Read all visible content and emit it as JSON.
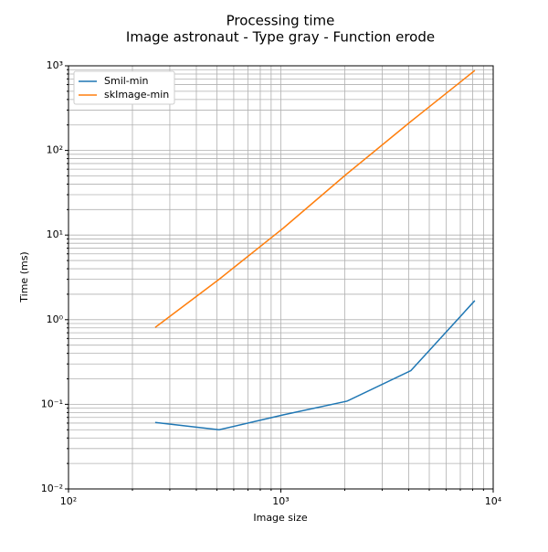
{
  "chart_data": {
    "type": "line",
    "title": "Processing time",
    "subtitle": "Image astronaut - Type gray - Function erode",
    "x_label": "Image size",
    "y_label": "Time (ms)",
    "x": [
      256,
      512,
      1024,
      2048,
      4096,
      8192
    ],
    "series": [
      {
        "name": "Smil-min",
        "color": "#1f77b4",
        "values": [
          0.061,
          0.05,
          0.075,
          0.109,
          0.25,
          1.68
        ]
      },
      {
        "name": "skImage-min",
        "color": "#ff7f0e",
        "values": [
          0.81,
          3.0,
          12,
          53,
          220,
          880
        ]
      }
    ],
    "x_log": true,
    "y_log": true,
    "grid": true,
    "legend": "upper left",
    "xlim": [
      100,
      10000
    ],
    "ylim": [
      0.01,
      1000
    ],
    "xticks": [
      {
        "value": 100,
        "label": "10²"
      },
      {
        "value": 1000,
        "label": "10³"
      },
      {
        "value": 10000,
        "label": "10⁴"
      }
    ],
    "yticks": [
      {
        "value": 0.01,
        "label": "10⁻²"
      },
      {
        "value": 0.1,
        "label": "10⁻¹"
      },
      {
        "value": 1,
        "label": "10⁰"
      },
      {
        "value": 10,
        "label": "10¹"
      },
      {
        "value": 100,
        "label": "10²"
      },
      {
        "value": 1000,
        "label": "10³"
      }
    ],
    "x_minor_ticks": [
      200,
      300,
      400,
      500,
      600,
      700,
      800,
      900,
      2000,
      3000,
      4000,
      5000,
      6000,
      7000,
      8000,
      9000
    ],
    "y_minor_ticks": [
      0.02,
      0.03,
      0.04,
      0.05,
      0.06,
      0.07,
      0.08,
      0.09,
      0.2,
      0.3,
      0.4,
      0.5,
      0.6,
      0.7,
      0.8,
      0.9,
      2,
      3,
      4,
      5,
      6,
      7,
      8,
      9,
      20,
      30,
      40,
      50,
      60,
      70,
      80,
      90,
      200,
      300,
      400,
      500,
      600,
      700,
      800,
      900
    ]
  }
}
